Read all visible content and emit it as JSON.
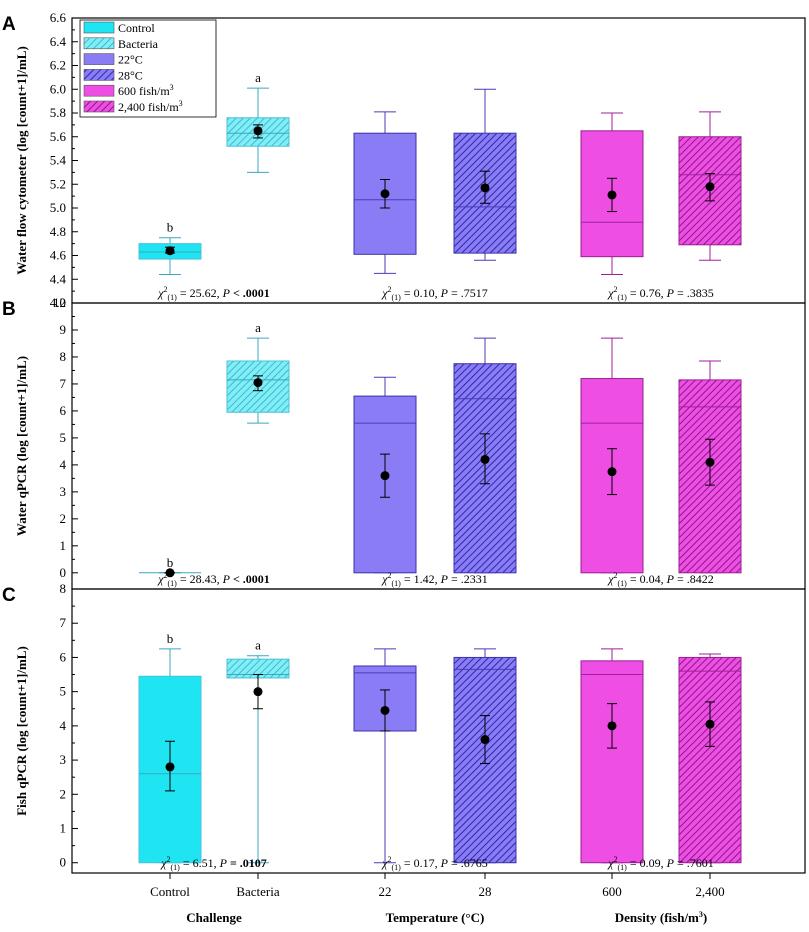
{
  "colors": {
    "cyan": "#1FE4F2",
    "cyan_light": "#7EEFF7",
    "cyan_dark": "#3AA8C0",
    "purple": "#8A7CF5",
    "purple_dark": "#2A2AA8",
    "magenta": "#EE4EE4",
    "magenta_dark": "#8A1A86"
  },
  "legend": [
    {
      "label": "Control",
      "color": "cyan",
      "hatch": false
    },
    {
      "label": "Bacteria",
      "color": "cyan",
      "hatch": true
    },
    {
      "label": "22°C",
      "color": "purple",
      "hatch": false
    },
    {
      "label": "28°C",
      "color": "purple",
      "hatch": true
    },
    {
      "label": "600 fish/m",
      "sup": "3",
      "color": "magenta",
      "hatch": false
    },
    {
      "label": "2,400 fish/m",
      "sup": "3",
      "color": "magenta",
      "hatch": true
    }
  ],
  "x_categories": [
    "Control",
    "Bacteria",
    "22",
    "28",
    "600",
    "2,400"
  ],
  "group_labels": [
    {
      "label": "Challenge"
    },
    {
      "label": "Temperature (°C)"
    },
    {
      "label": "Density (fish/m",
      "sup": "3",
      "tail": ")"
    }
  ],
  "chart_data": [
    {
      "type": "box",
      "panel": "A",
      "ylabel": "Water flow cytometer (log [count+1]/mL)",
      "ylim": [
        4.2,
        6.6
      ],
      "yticks": [
        "4.2",
        "4.4",
        "4.6",
        "4.8",
        "5.0",
        "5.2",
        "5.4",
        "5.6",
        "5.8",
        "6.0",
        "6.2",
        "6.4",
        "6.6"
      ],
      "boxes": [
        {
          "category": "Control",
          "whisker_low": 4.44,
          "q1": 4.57,
          "median": 4.63,
          "q3": 4.7,
          "whisker_high": 4.75,
          "mean": 4.64,
          "err_low": 4.62,
          "err_high": 4.67,
          "letter": "b"
        },
        {
          "category": "Bacteria",
          "whisker_low": 5.3,
          "q1": 5.52,
          "median": 5.63,
          "q3": 5.76,
          "whisker_high": 6.01,
          "mean": 5.65,
          "err_low": 5.59,
          "err_high": 5.7,
          "letter": "a"
        },
        {
          "category": "22",
          "whisker_low": 4.45,
          "q1": 4.61,
          "median": 5.07,
          "q3": 5.63,
          "whisker_high": 5.81,
          "mean": 5.12,
          "err_low": 5.0,
          "err_high": 5.24
        },
        {
          "category": "28",
          "whisker_low": 4.56,
          "q1": 4.62,
          "median": 5.01,
          "q3": 5.63,
          "whisker_high": 6.0,
          "mean": 5.17,
          "err_low": 5.04,
          "err_high": 5.31
        },
        {
          "category": "600",
          "whisker_low": 4.44,
          "q1": 4.59,
          "median": 4.88,
          "q3": 5.65,
          "whisker_high": 5.8,
          "mean": 5.11,
          "err_low": 4.97,
          "err_high": 5.25
        },
        {
          "category": "2,400",
          "whisker_low": 4.56,
          "q1": 4.69,
          "median": 5.28,
          "q3": 5.6,
          "whisker_high": 5.81,
          "mean": 5.18,
          "err_low": 5.06,
          "err_high": 5.29
        }
      ],
      "stats": [
        {
          "chi": " = 25.62, ",
          "p": "< .0001",
          "p_bold": true
        },
        {
          "chi": " = 0.10, ",
          "p": "= .7517",
          "p_bold": false
        },
        {
          "chi": " = 0.76, ",
          "p": "= .3835",
          "p_bold": false
        }
      ]
    },
    {
      "type": "box",
      "panel": "B",
      "ylabel": "Water qPCR (log [count+1]/mL)",
      "ylim": [
        -0.6,
        10
      ],
      "yticks": [
        "0",
        "1",
        "2",
        "3",
        "4",
        "5",
        "6",
        "7",
        "8",
        "9",
        "10"
      ],
      "boxes": [
        {
          "category": "Control",
          "whisker_low": 0,
          "q1": 0,
          "median": 0,
          "q3": 0,
          "whisker_high": 0,
          "mean": 0,
          "err_low": 0,
          "err_high": 0,
          "letter": "b"
        },
        {
          "category": "Bacteria",
          "whisker_low": 5.55,
          "q1": 5.95,
          "median": 7.15,
          "q3": 7.85,
          "whisker_high": 8.7,
          "mean": 7.05,
          "err_low": 6.75,
          "err_high": 7.3,
          "letter": "a"
        },
        {
          "category": "22",
          "whisker_low": 0,
          "q1": 0,
          "median": 5.55,
          "q3": 6.55,
          "whisker_high": 7.25,
          "mean": 3.6,
          "err_low": 2.8,
          "err_high": 4.4
        },
        {
          "category": "28",
          "whisker_low": 0,
          "q1": 0,
          "median": 6.45,
          "q3": 7.75,
          "whisker_high": 8.7,
          "mean": 4.2,
          "err_low": 3.3,
          "err_high": 5.15
        },
        {
          "category": "600",
          "whisker_low": 0,
          "q1": 0,
          "median": 5.55,
          "q3": 7.2,
          "whisker_high": 8.7,
          "mean": 3.75,
          "err_low": 2.9,
          "err_high": 4.6
        },
        {
          "category": "2,400",
          "whisker_low": 0,
          "q1": 0,
          "median": 6.15,
          "q3": 7.15,
          "whisker_high": 7.85,
          "mean": 4.1,
          "err_low": 3.25,
          "err_high": 4.95
        }
      ],
      "stats": [
        {
          "chi": " = 28.43, ",
          "p": "< .0001",
          "p_bold": true
        },
        {
          "chi": " = 1.42, ",
          "p": "= .2331",
          "p_bold": false
        },
        {
          "chi": " = 0.04, ",
          "p": "= .8422",
          "p_bold": false
        }
      ]
    },
    {
      "type": "box",
      "panel": "C",
      "ylabel": "Fish qPCR (log [count+1]/mL)",
      "ylim": [
        -0.3,
        8
      ],
      "yticks": [
        "0",
        "1",
        "2",
        "3",
        "4",
        "5",
        "6",
        "7",
        "8"
      ],
      "boxes": [
        {
          "category": "Control",
          "whisker_low": 0,
          "q1": 0,
          "median": 2.6,
          "q3": 5.45,
          "whisker_high": 6.25,
          "mean": 2.8,
          "err_low": 2.1,
          "err_high": 3.55,
          "letter": "b"
        },
        {
          "category": "Bacteria",
          "whisker_low": 0,
          "q1": 5.4,
          "median": 5.5,
          "q3": 5.95,
          "whisker_high": 6.05,
          "mean": 5.0,
          "err_low": 4.5,
          "err_high": 5.5,
          "letter": "a"
        },
        {
          "category": "22",
          "whisker_low": 0,
          "q1": 3.85,
          "median": 5.55,
          "q3": 5.75,
          "whisker_high": 6.25,
          "mean": 4.45,
          "err_low": 3.85,
          "err_high": 5.05
        },
        {
          "category": "28",
          "whisker_low": 0,
          "q1": 0,
          "median": 5.65,
          "q3": 6.0,
          "whisker_high": 6.25,
          "mean": 3.6,
          "err_low": 2.9,
          "err_high": 4.3
        },
        {
          "category": "600",
          "whisker_low": 0,
          "q1": 0,
          "median": 5.5,
          "q3": 5.9,
          "whisker_high": 6.25,
          "mean": 4.0,
          "err_low": 3.35,
          "err_high": 4.65
        },
        {
          "category": "2,400",
          "whisker_low": 0,
          "q1": 0,
          "median": 5.6,
          "q3": 6.0,
          "whisker_high": 6.1,
          "mean": 4.05,
          "err_low": 3.4,
          "err_high": 4.7
        }
      ],
      "stats": [
        {
          "chi": " = 6.51, ",
          "p": "= .0107",
          "p_bold": true
        },
        {
          "chi": " = 0.17, ",
          "p": "= .6765",
          "p_bold": false
        },
        {
          "chi": " = 0.09, ",
          "p": "= .7601",
          "p_bold": false
        }
      ]
    }
  ]
}
